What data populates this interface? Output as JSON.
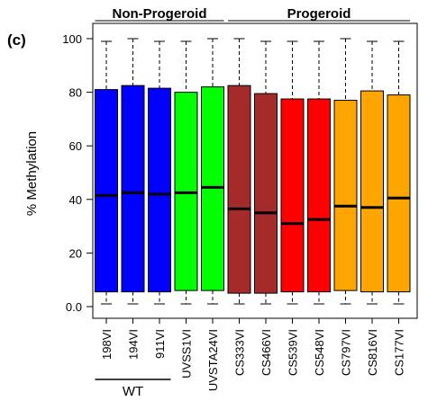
{
  "panel_label": "(c)",
  "chart_data": {
    "type": "box",
    "ylabel": "% Methylation",
    "xlabel": "",
    "ylim": [
      0,
      100
    ],
    "yticks": [
      0.0,
      20,
      40,
      60,
      80,
      100
    ],
    "ytick_labels": [
      "0.0",
      "20",
      "40",
      "60",
      "80",
      "100"
    ],
    "grid": false,
    "groups": [
      {
        "label": "Non-Progeroid",
        "from": 0,
        "to": 4
      },
      {
        "label": "Progeroid",
        "from": 5,
        "to": 11
      }
    ],
    "subgroups": [
      {
        "label": "WT",
        "from": 0,
        "to": 2
      }
    ],
    "categories": [
      "198VI",
      "194VI",
      "911VI",
      "UVSS1VI",
      "UVSTA24VI",
      "CS333VI",
      "CS466VI",
      "CS539VI",
      "CS548VI",
      "CS797VI",
      "CS816VI",
      "CS177VI"
    ],
    "colors": [
      "#0000ff",
      "#0000ff",
      "#0000ff",
      "#00ff00",
      "#00ff00",
      "#a52a2a",
      "#a52a2a",
      "#ff0000",
      "#ff0000",
      "#ffa500",
      "#ffa500",
      "#ffa500"
    ],
    "boxes": [
      {
        "whisker_low": 1.0,
        "q1": 5.5,
        "median": 41.5,
        "q3": 81.0,
        "whisker_high": 99.0
      },
      {
        "whisker_low": 1.0,
        "q1": 5.5,
        "median": 42.5,
        "q3": 82.5,
        "whisker_high": 100.0
      },
      {
        "whisker_low": 1.0,
        "q1": 5.5,
        "median": 42.0,
        "q3": 81.5,
        "whisker_high": 99.0
      },
      {
        "whisker_low": 1.0,
        "q1": 6.0,
        "median": 42.5,
        "q3": 80.0,
        "whisker_high": 99.0
      },
      {
        "whisker_low": 1.0,
        "q1": 6.0,
        "median": 44.5,
        "q3": 82.0,
        "whisker_high": 100.0
      },
      {
        "whisker_low": 1.0,
        "q1": 5.0,
        "median": 36.5,
        "q3": 82.5,
        "whisker_high": 100.0
      },
      {
        "whisker_low": 1.0,
        "q1": 5.0,
        "median": 35.0,
        "q3": 79.5,
        "whisker_high": 99.0
      },
      {
        "whisker_low": 1.0,
        "q1": 5.5,
        "median": 31.0,
        "q3": 77.5,
        "whisker_high": 99.0
      },
      {
        "whisker_low": 1.0,
        "q1": 5.5,
        "median": 32.5,
        "q3": 77.5,
        "whisker_high": 99.0
      },
      {
        "whisker_low": 1.0,
        "q1": 6.0,
        "median": 37.5,
        "q3": 77.0,
        "whisker_high": 100.0
      },
      {
        "whisker_low": 1.0,
        "q1": 5.5,
        "median": 37.0,
        "q3": 80.5,
        "whisker_high": 99.0
      },
      {
        "whisker_low": 1.0,
        "q1": 5.5,
        "median": 40.5,
        "q3": 79.0,
        "whisker_high": 99.0
      }
    ]
  }
}
